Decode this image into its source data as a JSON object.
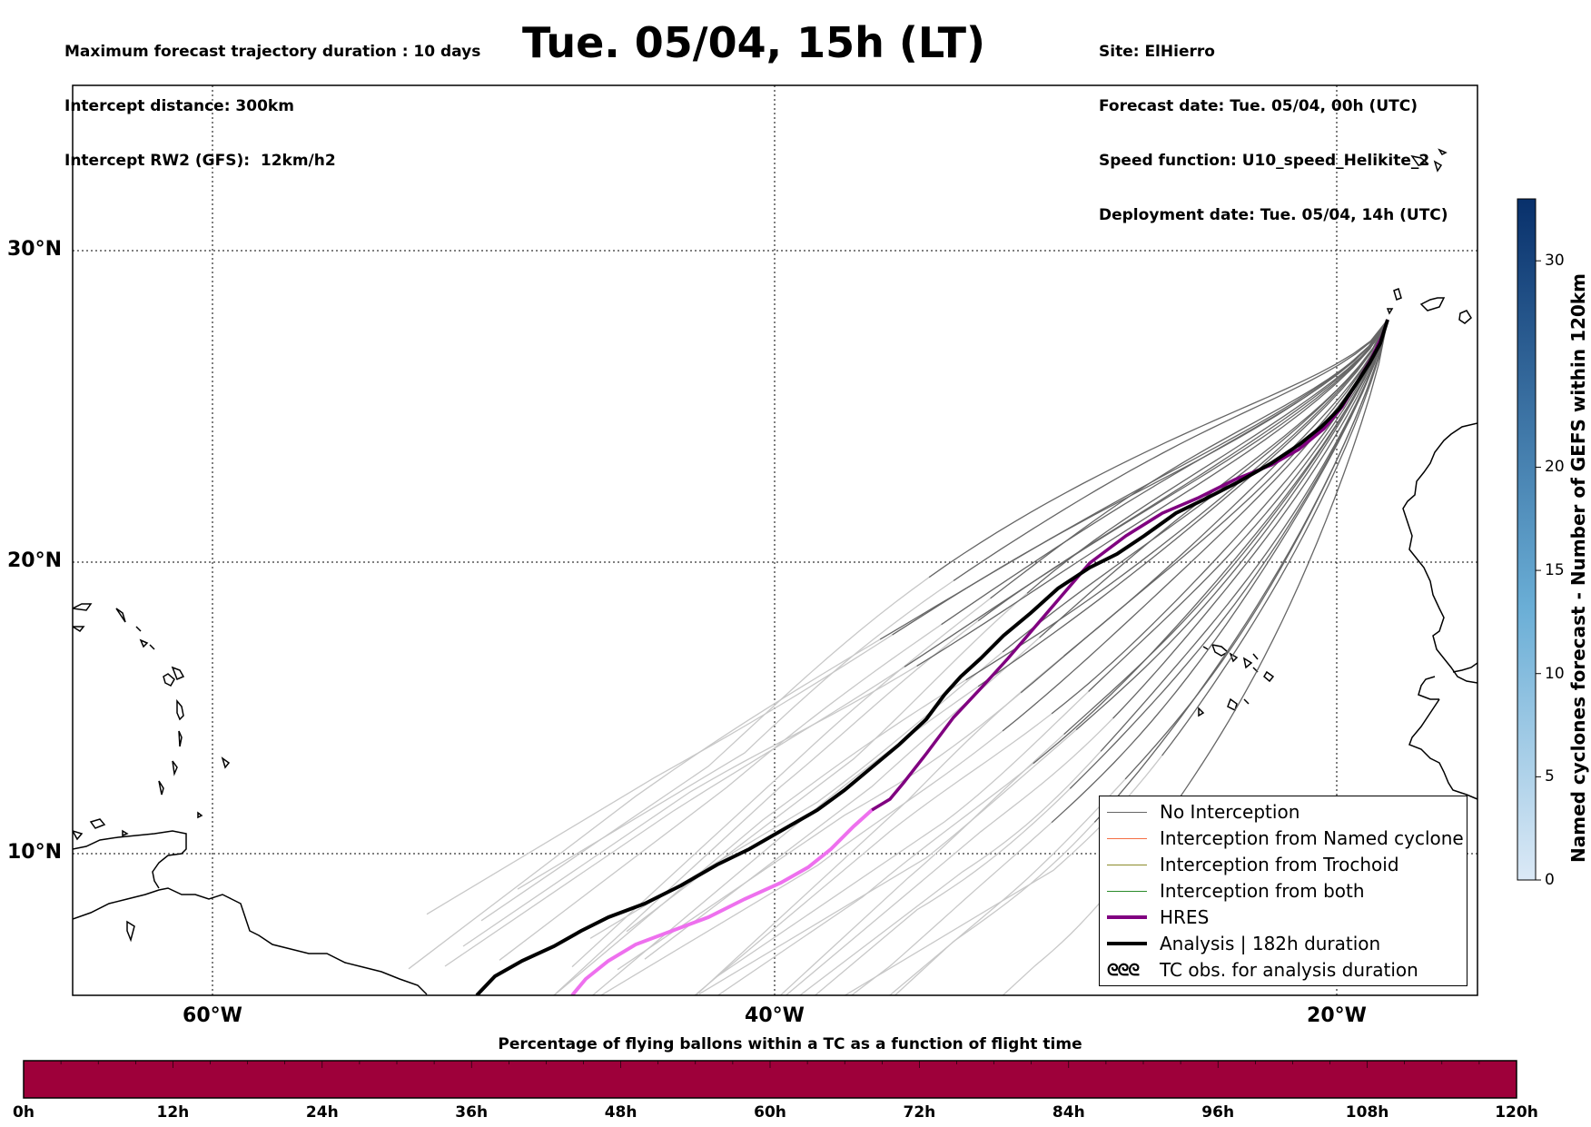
{
  "header": {
    "left_lines": [
      "Maximum forecast trajectory duration : 10 days",
      "Intercept distance: 300km",
      "Intercept RW2 (GFS):  12km/h2"
    ],
    "title": "Tue. 05/04, 15h (LT)",
    "right_lines": [
      "Site: ElHierro",
      "Forecast date: Tue. 05/04, 00h (UTC)",
      "Speed function: U10_speed_Helikite_2",
      "Deployment date: Tue. 05/04, 14h (UTC)"
    ]
  },
  "map": {
    "lat_labels": [
      "30°N",
      "20°N",
      "10°N"
    ],
    "lon_labels": [
      "60°W",
      "40°W",
      "20°W"
    ],
    "extent": {
      "lon_min": -65,
      "lon_max": -15,
      "lat_min": 5.4,
      "lat_max": 34.7
    },
    "gridlines": {
      "lons": [
        -60,
        -40,
        -20
      ],
      "lats": [
        10,
        20,
        30
      ]
    }
  },
  "legend": {
    "items": [
      {
        "label": "No Interception",
        "color": "#666666"
      },
      {
        "label": "Interception from Named cyclone",
        "color": "#f46d43"
      },
      {
        "label": "Interception from Trochoid",
        "color": "#8b8b2a"
      },
      {
        "label": "Interception from both",
        "color": "#2a8b2a"
      },
      {
        "label": "HRES",
        "color": "#800080"
      },
      {
        "label": "Analysis | 182h duration",
        "color": "#000000"
      },
      {
        "label": "TC obs. for analysis duration",
        "icon": "tc-symbol-icon",
        "glyph": "ᘓᘓᘓ"
      }
    ]
  },
  "colorbar": {
    "title": "Named cyclones forecast - Number of GEFS within 120km",
    "ticks": [
      "0",
      "5",
      "10",
      "15",
      "20",
      "30"
    ],
    "tick_values": [
      0,
      5,
      10,
      15,
      20,
      30
    ],
    "max": 33,
    "colors": [
      "#dbe9f6",
      "#6aaed6",
      "#08306b"
    ]
  },
  "timeline": {
    "title": "Percentage of flying ballons within a TC as a function of flight time",
    "color": "#9e003a",
    "ticks": [
      "0h",
      "12h",
      "24h",
      "36h",
      "48h",
      "60h",
      "72h",
      "84h",
      "96h",
      "108h",
      "120h"
    ]
  }
}
